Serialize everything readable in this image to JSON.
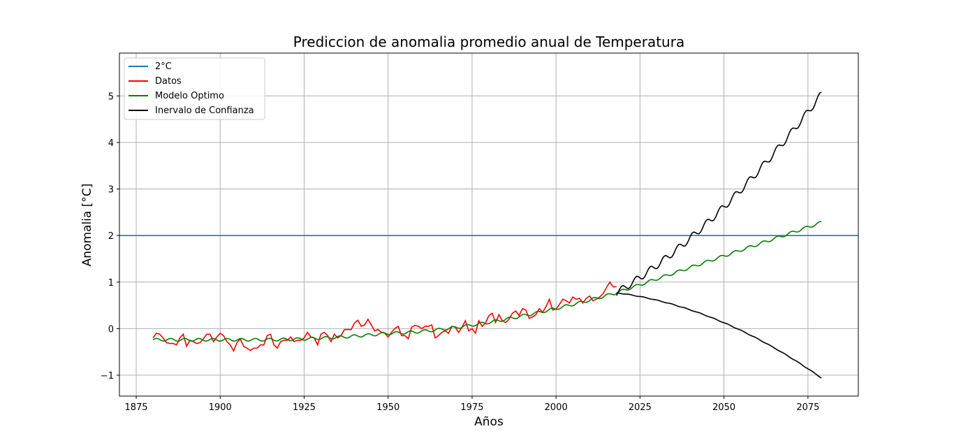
{
  "chart_data": {
    "type": "line",
    "title": "Prediccion de anomalia promedio anual de Temperatura",
    "xlabel": "Años",
    "ylabel": "Anomalia [°C]",
    "xlim": [
      1870,
      2090
    ],
    "ylim": [
      -1.45,
      5.92
    ],
    "xticks": [
      1875,
      1900,
      1925,
      1950,
      1975,
      2000,
      2025,
      2050,
      2075
    ],
    "yticks": [
      -1,
      0,
      1,
      2,
      3,
      4,
      5
    ],
    "grid": true,
    "legend_position": "top-left",
    "threshold": {
      "name": "2°C",
      "value": 2,
      "color": "#1f77b4"
    },
    "series": [
      {
        "name": "Datos",
        "color": "#ff0000",
        "x_start": 1880,
        "values": [
          -0.2,
          -0.1,
          -0.12,
          -0.2,
          -0.3,
          -0.32,
          -0.32,
          -0.35,
          -0.2,
          -0.12,
          -0.38,
          -0.25,
          -0.28,
          -0.32,
          -0.3,
          -0.22,
          -0.12,
          -0.12,
          -0.28,
          -0.18,
          -0.1,
          -0.15,
          -0.28,
          -0.35,
          -0.48,
          -0.3,
          -0.22,
          -0.38,
          -0.42,
          -0.47,
          -0.42,
          -0.42,
          -0.35,
          -0.35,
          -0.15,
          -0.12,
          -0.35,
          -0.42,
          -0.28,
          -0.25,
          -0.25,
          -0.18,
          -0.28,
          -0.25,
          -0.25,
          -0.2,
          -0.08,
          -0.18,
          -0.2,
          -0.35,
          -0.12,
          -0.08,
          -0.15,
          -0.28,
          -0.12,
          -0.2,
          -0.15,
          -0.02,
          -0.02,
          -0.02,
          0.12,
          0.18,
          0.05,
          0.08,
          0.2,
          0.08,
          -0.05,
          -0.02,
          -0.08,
          -0.1,
          -0.18,
          -0.08,
          0.0,
          0.05,
          -0.15,
          -0.15,
          -0.22,
          0.03,
          0.07,
          0.05,
          0.0,
          0.05,
          0.05,
          0.08,
          -0.2,
          -0.15,
          -0.08,
          -0.05,
          -0.1,
          0.05,
          0.03,
          -0.08,
          0.03,
          0.17,
          -0.05,
          0.0,
          -0.1,
          0.17,
          0.05,
          0.12,
          0.28,
          0.33,
          0.13,
          0.3,
          0.17,
          0.13,
          0.2,
          0.33,
          0.38,
          0.28,
          0.43,
          0.4,
          0.22,
          0.25,
          0.3,
          0.43,
          0.35,
          0.47,
          0.63,
          0.4,
          0.42,
          0.52,
          0.63,
          0.6,
          0.55,
          0.68,
          0.63,
          0.65,
          0.55,
          0.65,
          0.7,
          0.6,
          0.63,
          0.68,
          0.75,
          0.88,
          1.0,
          0.9,
          0.9
        ]
      },
      {
        "name": "Modelo Optimo",
        "color": "#008000"
      },
      {
        "name": "Inervalo de Confianza",
        "color": "#000000"
      }
    ]
  }
}
